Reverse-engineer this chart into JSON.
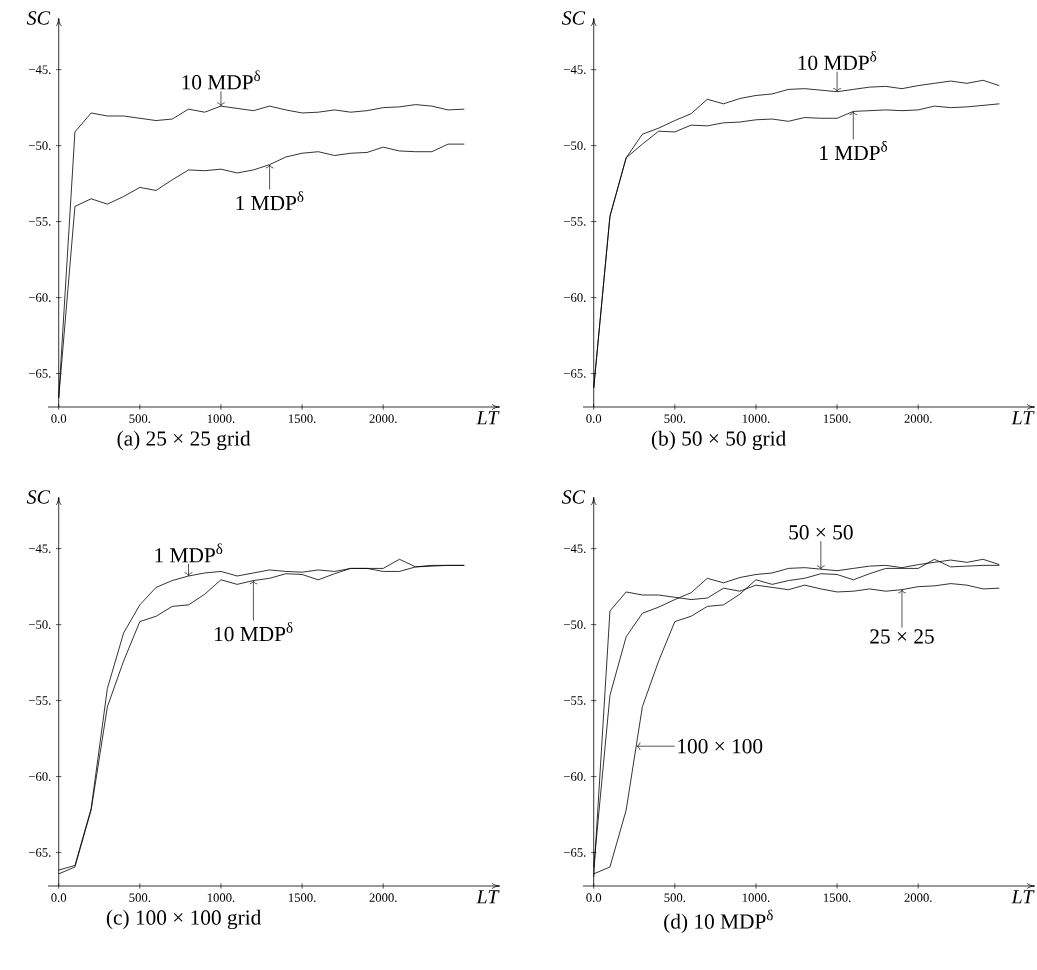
{
  "chart_data": [
    {
      "type": "line",
      "title": "(a) 25 × 25 grid",
      "xlabel": "LT",
      "ylabel": "SC",
      "marker": "none",
      "x": [
        0,
        100,
        200,
        300,
        400,
        500,
        600,
        700,
        800,
        900,
        1000,
        1100,
        1200,
        1300,
        1400,
        1500,
        1600,
        1700,
        1800,
        1900,
        2000,
        2100,
        2200,
        2300,
        2400,
        2500
      ],
      "series": [
        {
          "color": "#000000",
          "values": [
            -66.6,
            -49.1,
            -47.85,
            -48.05,
            -48.05,
            -48.2,
            -48.35,
            -48.25,
            -47.6,
            -47.8,
            -47.4,
            -47.55,
            -47.7,
            -47.4,
            -47.65,
            -47.85,
            -47.8,
            -47.65,
            -47.8,
            -47.7,
            -47.5,
            -47.45,
            -47.3,
            -47.4,
            -47.65,
            -47.6
          ]
        },
        {
          "color": "#000000",
          "values": [
            -66.6,
            -54.0,
            -53.5,
            -53.85,
            -53.35,
            -52.75,
            -52.95,
            -52.25,
            -51.6,
            -51.65,
            -51.55,
            -51.8,
            -51.6,
            -51.25,
            -50.75,
            -50.5,
            -50.4,
            -50.65,
            -50.5,
            -50.45,
            -50.1,
            -50.35,
            -50.4,
            -50.4,
            -49.9,
            -49.9
          ]
        }
      ],
      "xlim": [
        -66,
        2720
      ],
      "ylim": [
        -67.2,
        -41.6
      ],
      "xticks": [
        {
          "value": 0,
          "label": "0.0"
        },
        {
          "value": 500,
          "label": "500."
        },
        {
          "value": 1000,
          "label": "1000."
        },
        {
          "value": 1500,
          "label": "1500."
        },
        {
          "value": 2000,
          "label": "2000."
        }
      ],
      "yticks": [
        {
          "value": -45,
          "label": "−45."
        },
        {
          "value": -50,
          "label": "−50."
        },
        {
          "value": -55,
          "label": "−55."
        },
        {
          "value": -60,
          "label": "−60."
        },
        {
          "value": -65,
          "label": "−65."
        }
      ],
      "annotations": [
        {
          "text": "10 MDP$^{δ}$",
          "x": 1000,
          "y": -47.4
        },
        {
          "text": "1 MDP$^{δ}$",
          "x": 1300,
          "y": -51.25
        }
      ]
    },
    {
      "type": "line",
      "title": "(b) 50 × 50 grid",
      "xlabel": "LT",
      "ylabel": "SC",
      "marker": "none",
      "x": [
        0,
        100,
        200,
        300,
        400,
        500,
        600,
        700,
        800,
        900,
        1000,
        1100,
        1200,
        1300,
        1400,
        1500,
        1600,
        1700,
        1800,
        1900,
        2000,
        2100,
        2200,
        2300,
        2400,
        2500
      ],
      "series": [
        {
          "color": "#000000",
          "values": [
            -65.95,
            -54.65,
            -50.8,
            -49.25,
            -48.85,
            -48.35,
            -47.9,
            -46.95,
            -47.25,
            -46.9,
            -46.7,
            -46.6,
            -46.3,
            -46.25,
            -46.35,
            -46.45,
            -46.3,
            -46.15,
            -46.1,
            -46.25,
            -46.05,
            -45.9,
            -45.75,
            -45.9,
            -45.7,
            -46.05
          ]
        },
        {
          "color": "#000000",
          "values": [
            -65.95,
            -54.65,
            -50.8,
            -49.9,
            -49.05,
            -49.1,
            -48.65,
            -48.7,
            -48.5,
            -48.45,
            -48.3,
            -48.25,
            -48.4,
            -48.15,
            -48.2,
            -48.2,
            -47.75,
            -47.7,
            -47.65,
            -47.7,
            -47.65,
            -47.4,
            -47.5,
            -47.45,
            -47.35,
            -47.25
          ]
        }
      ],
      "xlim": [
        -66,
        2720
      ],
      "ylim": [
        -67.2,
        -41.6
      ],
      "xticks": [
        {
          "value": 0,
          "label": "0.0"
        },
        {
          "value": 500,
          "label": "500."
        },
        {
          "value": 1000,
          "label": "1000."
        },
        {
          "value": 1500,
          "label": "1500."
        },
        {
          "value": 2000,
          "label": "2000."
        }
      ],
      "yticks": [
        {
          "value": -45,
          "label": "−45."
        },
        {
          "value": -50,
          "label": "−50."
        },
        {
          "value": -55,
          "label": "−55."
        },
        {
          "value": -60,
          "label": "−60."
        },
        {
          "value": -65,
          "label": "−65."
        }
      ],
      "annotations": [
        {
          "text": "10 MDP$^{δ}$",
          "x": 1500,
          "y": -46.45
        },
        {
          "text": "1 MDP$^{δ}$",
          "x": 1600,
          "y": -47.75
        }
      ]
    },
    {
      "type": "line",
      "title": "(c) 100 × 100 grid",
      "xlabel": "LT",
      "ylabel": "SC",
      "marker": "none",
      "x": [
        0,
        100,
        200,
        300,
        400,
        500,
        600,
        700,
        800,
        900,
        1000,
        1100,
        1200,
        1300,
        1400,
        1500,
        1600,
        1700,
        1800,
        1900,
        2000,
        2100,
        2200,
        2300,
        2400,
        2500
      ],
      "series": [
        {
          "color": "#000000",
          "values": [
            -66.15,
            -65.85,
            -62.1,
            -54.2,
            -50.55,
            -48.7,
            -47.55,
            -47.1,
            -46.8,
            -46.6,
            -46.5,
            -46.8,
            -46.6,
            -46.4,
            -46.5,
            -46.55,
            -46.4,
            -46.5,
            -46.3,
            -46.3,
            -46.5,
            -46.5,
            -46.2,
            -46.1,
            -46.1,
            -46.1
          ]
        },
        {
          "color": "#000000",
          "values": [
            -66.4,
            -65.95,
            -62.2,
            -55.4,
            -52.4,
            -49.8,
            -49.45,
            -48.8,
            -48.7,
            -48.0,
            -47.05,
            -47.35,
            -47.1,
            -46.95,
            -46.65,
            -46.7,
            -47.05,
            -46.65,
            -46.3,
            -46.3,
            -46.3,
            -45.7,
            -46.2,
            -46.15,
            -46.1,
            -46.1
          ]
        }
      ],
      "xlim": [
        -66,
        2720
      ],
      "ylim": [
        -67.2,
        -41.6
      ],
      "xticks": [
        {
          "value": 0,
          "label": "0.0"
        },
        {
          "value": 500,
          "label": "500."
        },
        {
          "value": 1000,
          "label": "1000."
        },
        {
          "value": 1500,
          "label": "1500."
        },
        {
          "value": 2000,
          "label": "2000."
        }
      ],
      "yticks": [
        {
          "value": -45,
          "label": "−45."
        },
        {
          "value": -50,
          "label": "−50."
        },
        {
          "value": -55,
          "label": "−55."
        },
        {
          "value": -60,
          "label": "−60."
        },
        {
          "value": -65,
          "label": "−65."
        }
      ],
      "annotations": [
        {
          "text": "1 MDP$^{δ}$",
          "x": 800,
          "y": -46.8
        },
        {
          "text": "10 MDP$^{δ}$",
          "x": 1200,
          "y": -47.1
        }
      ]
    },
    {
      "type": "line",
      "title": "(d) 10 MDP$^{δ}$",
      "xlabel": "LT",
      "ylabel": "SC",
      "marker": "none",
      "x": [
        0,
        100,
        200,
        300,
        400,
        500,
        600,
        700,
        800,
        900,
        1000,
        1100,
        1200,
        1300,
        1400,
        1500,
        1600,
        1700,
        1800,
        1900,
        2000,
        2100,
        2200,
        2300,
        2400,
        2500
      ],
      "series": [
        {
          "color": "#000000",
          "values": [
            -66.6,
            -49.1,
            -47.85,
            -48.05,
            -48.05,
            -48.2,
            -48.35,
            -48.25,
            -47.6,
            -47.8,
            -47.4,
            -47.55,
            -47.7,
            -47.4,
            -47.65,
            -47.85,
            -47.8,
            -47.65,
            -47.8,
            -47.7,
            -47.5,
            -47.45,
            -47.3,
            -47.4,
            -47.65,
            -47.6
          ]
        },
        {
          "color": "#000000",
          "values": [
            -65.95,
            -54.65,
            -50.8,
            -49.25,
            -48.85,
            -48.35,
            -47.9,
            -46.95,
            -47.25,
            -46.9,
            -46.7,
            -46.6,
            -46.3,
            -46.25,
            -46.35,
            -46.45,
            -46.3,
            -46.15,
            -46.1,
            -46.25,
            -46.05,
            -45.9,
            -45.75,
            -45.9,
            -45.7,
            -46.05
          ]
        },
        {
          "color": "#000000",
          "values": [
            -66.4,
            -65.95,
            -62.2,
            -55.4,
            -52.4,
            -49.8,
            -49.45,
            -48.8,
            -48.7,
            -48.0,
            -47.05,
            -47.35,
            -47.1,
            -46.95,
            -46.65,
            -46.7,
            -47.05,
            -46.65,
            -46.3,
            -46.3,
            -46.3,
            -45.7,
            -46.2,
            -46.15,
            -46.1,
            -46.1
          ]
        }
      ],
      "xlim": [
        -66,
        2720
      ],
      "ylim": [
        -67.2,
        -41.6
      ],
      "xticks": [
        {
          "value": 0,
          "label": "0.0"
        },
        {
          "value": 500,
          "label": "500."
        },
        {
          "value": 1000,
          "label": "1000."
        },
        {
          "value": 1500,
          "label": "1500."
        },
        {
          "value": 2000,
          "label": "2000."
        }
      ],
      "yticks": [
        {
          "value": -45,
          "label": "−45."
        },
        {
          "value": -50,
          "label": "−50."
        },
        {
          "value": -55,
          "label": "−55."
        },
        {
          "value": -60,
          "label": "−60."
        },
        {
          "value": -65,
          "label": "−65."
        }
      ],
      "annotations": [
        {
          "text": "50 × 50",
          "x": 1400,
          "y": -46.35
        },
        {
          "text": "25 × 25",
          "x": 1900,
          "y": -47.7
        },
        {
          "text": "100 × 100",
          "x": 265,
          "y": -58.0
        }
      ]
    }
  ]
}
